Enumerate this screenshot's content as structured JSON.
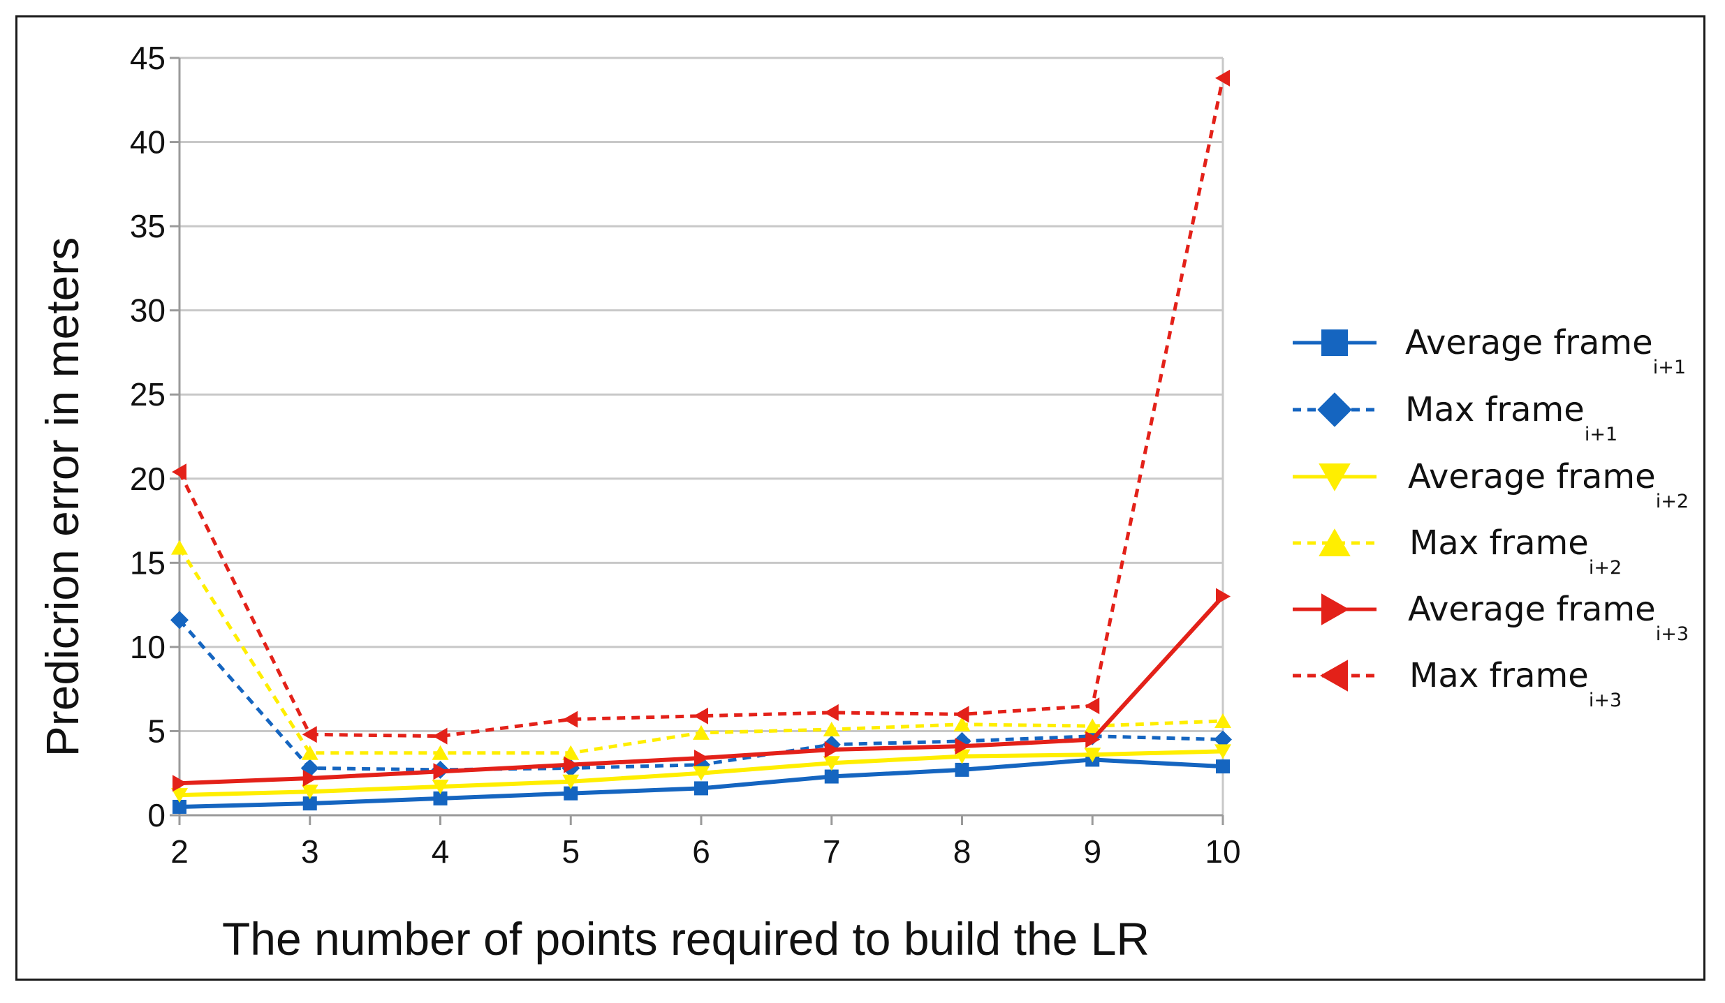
{
  "chart_data": {
    "type": "line",
    "title": "",
    "xlabel": "The number of points required to build the LR",
    "ylabel": "Predicrion error in meters",
    "categories": [
      2,
      3,
      4,
      5,
      6,
      7,
      8,
      9,
      10
    ],
    "ylim": [
      0,
      45
    ],
    "yticks": [
      0,
      5,
      10,
      15,
      20,
      25,
      30,
      35,
      40,
      45
    ],
    "grid": true,
    "legend_position": "right",
    "series": [
      {
        "name": "Average frame",
        "sub": "i+1",
        "color": "#1565c0",
        "dash": false,
        "marker": "square",
        "values": [
          0.5,
          0.7,
          1.0,
          1.3,
          1.6,
          2.3,
          2.7,
          3.3,
          2.9
        ]
      },
      {
        "name": "Max frame",
        "sub": "i+1",
        "color": "#1565c0",
        "dash": true,
        "marker": "diamond",
        "values": [
          11.6,
          2.8,
          2.7,
          2.8,
          3.0,
          4.2,
          4.4,
          4.7,
          4.5
        ]
      },
      {
        "name": "Average frame",
        "sub": "i+2",
        "color": "#ffee00",
        "dash": false,
        "marker": "triangle-down",
        "values": [
          1.2,
          1.4,
          1.7,
          2.0,
          2.5,
          3.1,
          3.5,
          3.6,
          3.8
        ]
      },
      {
        "name": "Max frame",
        "sub": "i+2",
        "color": "#ffee00",
        "dash": true,
        "marker": "triangle-up",
        "values": [
          15.9,
          3.7,
          3.7,
          3.7,
          4.9,
          5.1,
          5.4,
          5.3,
          5.6
        ]
      },
      {
        "name": "Average frame",
        "sub": "i+3",
        "color": "#e32119",
        "dash": false,
        "marker": "triangle-right",
        "values": [
          1.9,
          2.2,
          2.6,
          3.0,
          3.4,
          3.9,
          4.1,
          4.5,
          13.0
        ]
      },
      {
        "name": "Max frame",
        "sub": "i+3",
        "color": "#e32119",
        "dash": true,
        "marker": "triangle-left",
        "values": [
          20.4,
          4.8,
          4.7,
          5.7,
          5.9,
          6.1,
          6.0,
          6.5,
          43.8
        ]
      }
    ]
  }
}
